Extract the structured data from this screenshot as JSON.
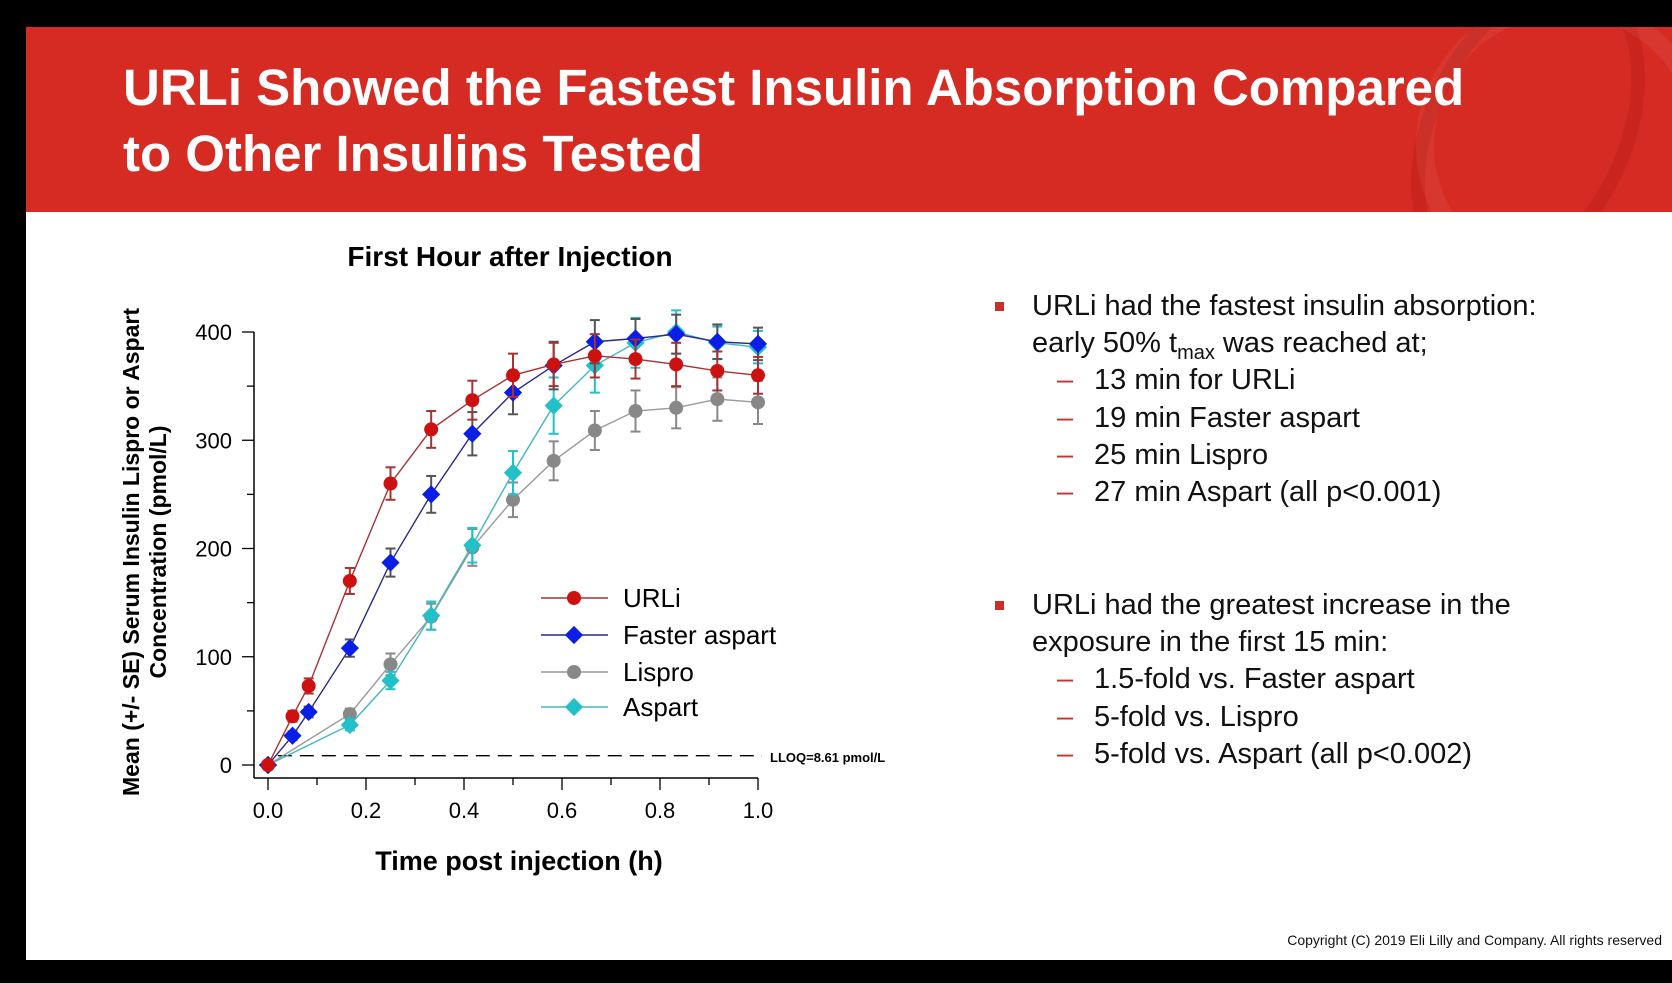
{
  "slide": {
    "title_line1": "URLi Showed the Fastest Insulin Absorption Compared",
    "title_line2": "to Other Insulins Tested",
    "copyright": "Copyright (C) 2019 Eli Lilly and Company. All rights reserved",
    "accent_color": "#d52b22"
  },
  "bullets": [
    {
      "lines": [
        "URLi had the fastest insulin absorption:",
        "early 50% t",
        "max",
        " was reached at;"
      ],
      "subs": [
        "13 min for URLi",
        "19 min Faster aspart",
        "25 min Lispro",
        "27 min Aspart (all p<0.001)"
      ]
    },
    {
      "lines": [
        "URLi had the greatest increase in the",
        "exposure in the first 15 min:"
      ],
      "subs": [
        "1.5-fold vs. Faster aspart",
        "5-fold vs. Lispro",
        "5-fold vs. Aspart (all p<0.002)"
      ]
    }
  ],
  "chart_data": {
    "type": "line",
    "title": "First Hour after Injection",
    "xlabel": "Time post injection (h)",
    "ylabel_line1": "Mean (+/- SE) Serum Insulin Lispro or Aspart",
    "ylabel_line2": "Concentration (pmol/L)",
    "xlim": [
      0,
      1.0
    ],
    "ylim": [
      0,
      400
    ],
    "xticks": [
      "0.0",
      "0.2",
      "0.4",
      "0.6",
      "0.8",
      "1.0"
    ],
    "yticks": [
      "0",
      "100",
      "200",
      "300",
      "400"
    ],
    "grid": false,
    "legend_placement": "center-right",
    "reference_line": {
      "y": 8.61,
      "label": "LLOQ=8.61 pmol/L",
      "style": "dashed"
    },
    "series": [
      {
        "name": "URLi",
        "color": "#cc1111",
        "line_color": "#a83232",
        "marker": "circle",
        "x": [
          0,
          0.05,
          0.083,
          0.167,
          0.25,
          0.333,
          0.417,
          0.5,
          0.583,
          0.667,
          0.75,
          0.833,
          0.917,
          1.0
        ],
        "y": [
          0,
          45,
          73,
          170,
          260,
          310,
          337,
          360,
          370,
          378,
          375,
          370,
          364,
          360
        ],
        "se": [
          0,
          5,
          7,
          12,
          15,
          17,
          18,
          20,
          20,
          20,
          18,
          20,
          18,
          17
        ]
      },
      {
        "name": "Faster aspart",
        "color": "#0a1ee6",
        "line_color": "#2a2a8a",
        "marker": "diamond",
        "x": [
          0,
          0.05,
          0.083,
          0.167,
          0.25,
          0.333,
          0.417,
          0.5,
          0.583,
          0.667,
          0.75,
          0.833,
          0.917,
          1.0
        ],
        "y": [
          0,
          27,
          49,
          108,
          187,
          250,
          306,
          344,
          369,
          391,
          394,
          398,
          391,
          389
        ],
        "se": [
          0,
          4,
          5,
          8,
          13,
          17,
          20,
          20,
          22,
          20,
          18,
          18,
          16,
          15
        ]
      },
      {
        "name": "Lispro",
        "color": "#888888",
        "line_color": "#9a9a9a",
        "marker": "circle",
        "x": [
          0,
          0.167,
          0.25,
          0.333,
          0.417,
          0.5,
          0.583,
          0.667,
          0.75,
          0.833,
          0.917,
          1.0
        ],
        "y": [
          0,
          47,
          93,
          137,
          201,
          245,
          281,
          309,
          327,
          330,
          338,
          335
        ],
        "se": [
          0,
          5,
          10,
          12,
          17,
          16,
          18,
          18,
          19,
          19,
          20,
          20
        ]
      },
      {
        "name": "Aspart",
        "color": "#22c0c8",
        "line_color": "#40b8c0",
        "marker": "diamond",
        "x": [
          0,
          0.167,
          0.25,
          0.333,
          0.417,
          0.5,
          0.583,
          0.667,
          0.75,
          0.833,
          0.917,
          1.0
        ],
        "y": [
          0,
          37,
          78,
          138,
          203,
          270,
          332,
          369,
          390,
          400,
          390,
          386
        ],
        "se": [
          0,
          5,
          8,
          13,
          16,
          20,
          26,
          25,
          23,
          20,
          15,
          15
        ]
      }
    ]
  }
}
